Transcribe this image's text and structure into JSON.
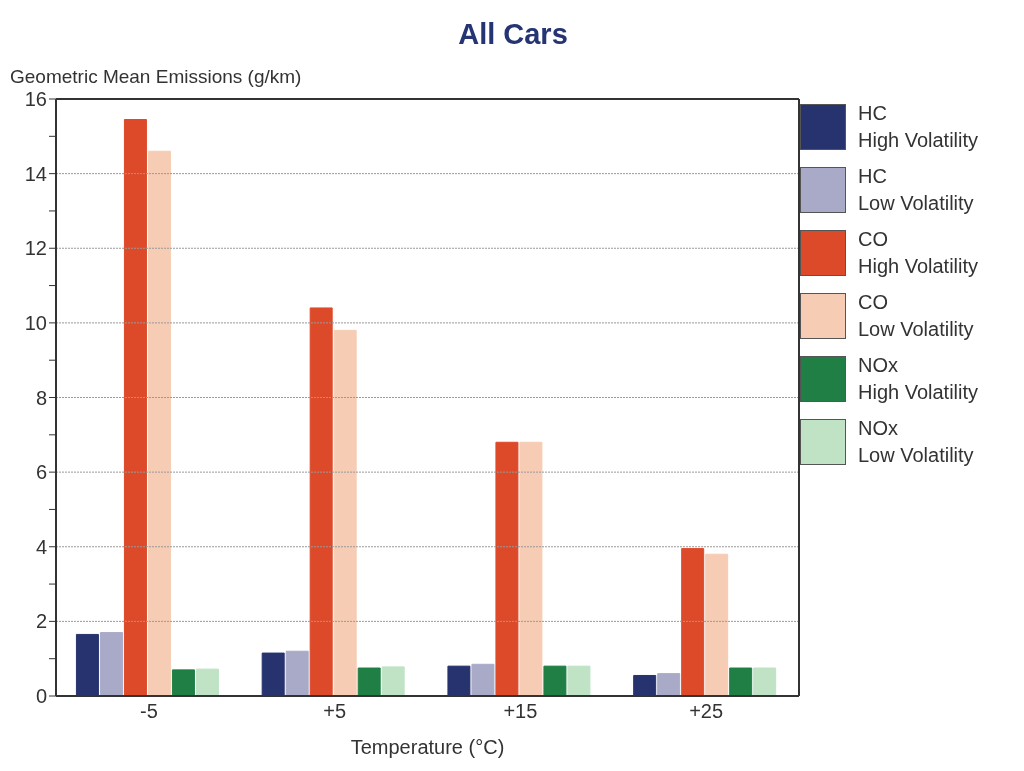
{
  "chart_data": {
    "type": "bar",
    "title": "All Cars",
    "ylabel": "Geometric Mean Emissions (g/km)",
    "xlabel": "Temperature (°C)",
    "categories": [
      "-5",
      "+5",
      "+15",
      "+25"
    ],
    "series": [
      {
        "name": "HC High Volatility",
        "color": "#27336e",
        "values": [
          1.65,
          1.15,
          0.8,
          0.55
        ]
      },
      {
        "name": "HC Low Volatility",
        "color": "#a9aac8",
        "values": [
          1.7,
          1.2,
          0.85,
          0.6
        ]
      },
      {
        "name": "CO High Volatility",
        "color": "#dd4a2a",
        "values": [
          15.45,
          10.4,
          6.8,
          3.95
        ]
      },
      {
        "name": "CO Low Volatility",
        "color": "#f6cdb4",
        "values": [
          14.6,
          9.8,
          6.8,
          3.8
        ]
      },
      {
        "name": "NOx High Volatility",
        "color": "#1f7f45",
        "values": [
          0.7,
          0.75,
          0.8,
          0.75
        ]
      },
      {
        "name": "NOx Low Volatility",
        "color": "#bfe3c4",
        "values": [
          0.72,
          0.78,
          0.8,
          0.75
        ]
      }
    ],
    "ylim": [
      0,
      16
    ],
    "yticks": [
      0,
      {
        "value": 1,
        "label": null
      },
      2,
      {
        "value": 3,
        "label": null
      },
      4,
      {
        "value": 5,
        "label": null
      },
      6,
      {
        "value": 7,
        "label": null
      },
      8,
      {
        "value": 9,
        "label": null
      },
      10,
      {
        "value": 11,
        "label": null
      },
      12,
      {
        "value": 13,
        "label": null
      },
      14,
      {
        "value": 15,
        "label": null
      },
      16
    ],
    "grid": "y",
    "legend": "right"
  }
}
